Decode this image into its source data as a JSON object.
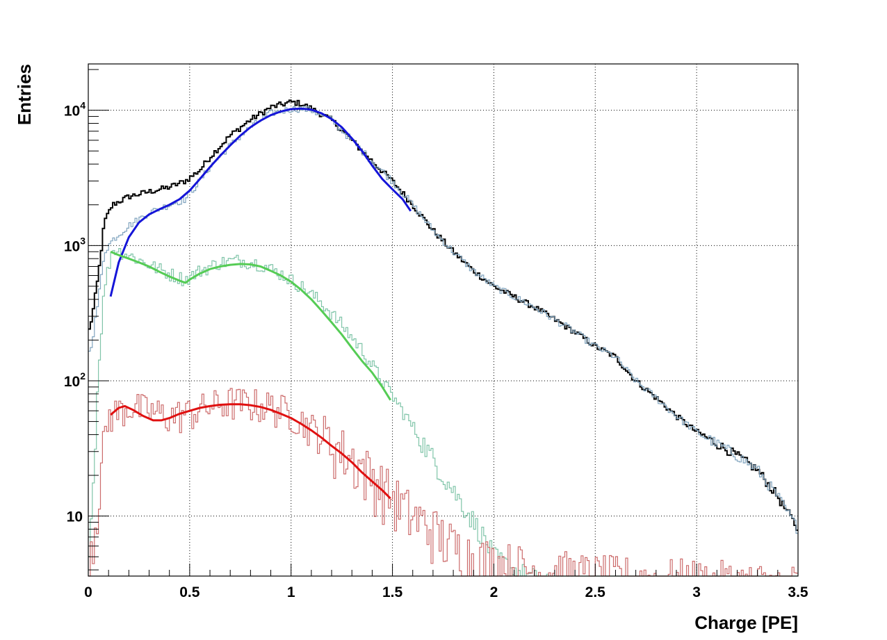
{
  "chart_data": {
    "type": "line",
    "title": "",
    "xlabel": "Charge [PE]",
    "ylabel": "Entries",
    "xlim": [
      0,
      3.5
    ],
    "ylim": [
      3.6,
      22000
    ],
    "y_scale": "log",
    "grid": true,
    "x_ticks": [
      "0",
      "0.5",
      "1",
      "1.5",
      "2",
      "2.5",
      "3",
      "3.5"
    ],
    "y_ticks": [
      {
        "value": 10,
        "label": "10",
        "exp": ""
      },
      {
        "value": 100,
        "label": "10",
        "exp": "2"
      },
      {
        "value": 1000,
        "label": "10",
        "exp": "3"
      },
      {
        "value": 10000,
        "label": "10",
        "exp": "4"
      }
    ],
    "histograms": [
      {
        "color": "#000000",
        "jitter": 0.05,
        "points": [
          [
            0,
            220
          ],
          [
            0.02,
            300
          ],
          [
            0.05,
            600
          ],
          [
            0.08,
            1500
          ],
          [
            0.12,
            2000
          ],
          [
            0.2,
            2300
          ],
          [
            0.3,
            2500
          ],
          [
            0.4,
            2700
          ],
          [
            0.48,
            3000
          ],
          [
            0.55,
            3600
          ],
          [
            0.6,
            4500
          ],
          [
            0.7,
            6500
          ],
          [
            0.8,
            8500
          ],
          [
            0.9,
            10500
          ],
          [
            1.0,
            11500
          ],
          [
            1.05,
            11200
          ],
          [
            1.1,
            10300
          ],
          [
            1.2,
            8500
          ],
          [
            1.3,
            6000
          ],
          [
            1.4,
            4200
          ],
          [
            1.5,
            3000
          ],
          [
            1.6,
            2000
          ],
          [
            1.7,
            1300
          ],
          [
            1.8,
            900
          ],
          [
            1.9,
            650
          ],
          [
            2.0,
            500
          ],
          [
            2.2,
            350
          ],
          [
            2.4,
            230
          ],
          [
            2.5,
            180
          ],
          [
            2.6,
            150
          ],
          [
            2.7,
            100
          ],
          [
            2.8,
            75
          ],
          [
            2.9,
            55
          ],
          [
            3.0,
            42
          ],
          [
            3.2,
            28
          ],
          [
            3.3,
            22
          ],
          [
            3.4,
            14
          ],
          [
            3.5,
            8
          ]
        ]
      },
      {
        "color": "#7fa3be",
        "jitter": 0.06,
        "points": [
          [
            0,
            150
          ],
          [
            0.02,
            200
          ],
          [
            0.05,
            400
          ],
          [
            0.08,
            900
          ],
          [
            0.12,
            1100
          ],
          [
            0.2,
            1400
          ],
          [
            0.3,
            1750
          ],
          [
            0.4,
            2000
          ],
          [
            0.48,
            2200
          ],
          [
            0.55,
            3000
          ],
          [
            0.6,
            3800
          ],
          [
            0.7,
            5500
          ],
          [
            0.8,
            7500
          ],
          [
            0.9,
            9500
          ],
          [
            1.0,
            10200
          ],
          [
            1.05,
            10300
          ],
          [
            1.1,
            10000
          ],
          [
            1.2,
            8500
          ],
          [
            1.3,
            6000
          ],
          [
            1.4,
            4200
          ],
          [
            1.5,
            3000
          ],
          [
            1.6,
            2000
          ],
          [
            1.7,
            1300
          ],
          [
            1.8,
            900
          ],
          [
            1.9,
            650
          ],
          [
            2.0,
            500
          ],
          [
            2.2,
            350
          ],
          [
            2.4,
            230
          ],
          [
            2.5,
            180
          ],
          [
            2.6,
            150
          ],
          [
            2.7,
            100
          ],
          [
            2.8,
            75
          ],
          [
            2.9,
            55
          ],
          [
            3.0,
            42
          ],
          [
            3.2,
            28
          ],
          [
            3.3,
            22
          ],
          [
            3.4,
            14
          ],
          [
            3.5,
            8
          ]
        ]
      },
      {
        "color": "#7fc4a8",
        "jitter": 0.12,
        "points": [
          [
            0,
            5
          ],
          [
            0.02,
            12
          ],
          [
            0.05,
            120
          ],
          [
            0.08,
            500
          ],
          [
            0.12,
            950
          ],
          [
            0.2,
            850
          ],
          [
            0.3,
            720
          ],
          [
            0.4,
            620
          ],
          [
            0.48,
            560
          ],
          [
            0.55,
            650
          ],
          [
            0.65,
            750
          ],
          [
            0.75,
            780
          ],
          [
            0.85,
            730
          ],
          [
            0.95,
            620
          ],
          [
            1.05,
            500
          ],
          [
            1.15,
            380
          ],
          [
            1.25,
            260
          ],
          [
            1.35,
            170
          ],
          [
            1.45,
            100
          ],
          [
            1.55,
            60
          ],
          [
            1.65,
            35
          ],
          [
            1.75,
            20
          ],
          [
            1.85,
            12
          ],
          [
            1.95,
            7
          ],
          [
            2.0,
            5
          ],
          [
            2.1,
            4
          ],
          [
            2.3,
            3
          ],
          [
            3.5,
            3
          ]
        ]
      },
      {
        "color": "#cc6b6b",
        "jitter": 0.3,
        "points": [
          [
            0,
            5
          ],
          [
            0.03,
            8
          ],
          [
            0.06,
            20
          ],
          [
            0.1,
            55
          ],
          [
            0.2,
            65
          ],
          [
            0.3,
            60
          ],
          [
            0.4,
            55
          ],
          [
            0.5,
            58
          ],
          [
            0.6,
            65
          ],
          [
            0.7,
            70
          ],
          [
            0.8,
            68
          ],
          [
            0.9,
            65
          ],
          [
            1.0,
            58
          ],
          [
            1.1,
            45
          ],
          [
            1.2,
            35
          ],
          [
            1.3,
            27
          ],
          [
            1.4,
            20
          ],
          [
            1.5,
            14
          ],
          [
            1.6,
            10
          ],
          [
            1.7,
            8
          ],
          [
            1.8,
            6
          ],
          [
            1.9,
            5
          ],
          [
            2.0,
            4.5
          ],
          [
            2.2,
            4
          ],
          [
            2.5,
            3.5
          ],
          [
            3.5,
            3
          ]
        ]
      }
    ],
    "fits": [
      {
        "color": "#1515d8",
        "points": [
          [
            0.11,
            420
          ],
          [
            0.15,
            750
          ],
          [
            0.2,
            1150
          ],
          [
            0.25,
            1480
          ],
          [
            0.3,
            1700
          ],
          [
            0.35,
            1850
          ],
          [
            0.4,
            2000
          ],
          [
            0.45,
            2200
          ],
          [
            0.5,
            2550
          ],
          [
            0.55,
            3100
          ],
          [
            0.6,
            3800
          ],
          [
            0.65,
            4600
          ],
          [
            0.7,
            5500
          ],
          [
            0.75,
            6500
          ],
          [
            0.8,
            7500
          ],
          [
            0.85,
            8400
          ],
          [
            0.9,
            9200
          ],
          [
            0.95,
            9800
          ],
          [
            1.0,
            10200
          ],
          [
            1.05,
            10300
          ],
          [
            1.1,
            10100
          ],
          [
            1.15,
            9500
          ],
          [
            1.2,
            8600
          ],
          [
            1.25,
            7500
          ],
          [
            1.3,
            6200
          ],
          [
            1.35,
            5000
          ],
          [
            1.4,
            3900
          ],
          [
            1.45,
            3100
          ],
          [
            1.5,
            2600
          ],
          [
            1.55,
            2200
          ],
          [
            1.59,
            1800
          ]
        ]
      },
      {
        "color": "#55cc55",
        "points": [
          [
            0.11,
            900
          ],
          [
            0.15,
            850
          ],
          [
            0.2,
            800
          ],
          [
            0.25,
            750
          ],
          [
            0.3,
            700
          ],
          [
            0.35,
            640
          ],
          [
            0.4,
            590
          ],
          [
            0.45,
            550
          ],
          [
            0.48,
            530
          ],
          [
            0.5,
            560
          ],
          [
            0.55,
            620
          ],
          [
            0.6,
            670
          ],
          [
            0.65,
            700
          ],
          [
            0.7,
            720
          ],
          [
            0.75,
            730
          ],
          [
            0.8,
            725
          ],
          [
            0.85,
            700
          ],
          [
            0.9,
            650
          ],
          [
            0.95,
            600
          ],
          [
            1.0,
            540
          ],
          [
            1.05,
            470
          ],
          [
            1.1,
            400
          ],
          [
            1.15,
            330
          ],
          [
            1.2,
            270
          ],
          [
            1.25,
            220
          ],
          [
            1.3,
            175
          ],
          [
            1.35,
            140
          ],
          [
            1.4,
            115
          ],
          [
            1.45,
            90
          ],
          [
            1.49,
            72
          ]
        ]
      },
      {
        "color": "#e01010",
        "points": [
          [
            0.11,
            56
          ],
          [
            0.15,
            63
          ],
          [
            0.18,
            65
          ],
          [
            0.22,
            61
          ],
          [
            0.27,
            55
          ],
          [
            0.32,
            51
          ],
          [
            0.36,
            51
          ],
          [
            0.4,
            53
          ],
          [
            0.45,
            57
          ],
          [
            0.5,
            60
          ],
          [
            0.55,
            63
          ],
          [
            0.6,
            65
          ],
          [
            0.65,
            66.5
          ],
          [
            0.7,
            67
          ],
          [
            0.75,
            67
          ],
          [
            0.8,
            66
          ],
          [
            0.85,
            64
          ],
          [
            0.9,
            61
          ],
          [
            0.95,
            57
          ],
          [
            1.0,
            53
          ],
          [
            1.05,
            48
          ],
          [
            1.1,
            43
          ],
          [
            1.15,
            38
          ],
          [
            1.2,
            33
          ],
          [
            1.25,
            29
          ],
          [
            1.3,
            25
          ],
          [
            1.35,
            21
          ],
          [
            1.4,
            18
          ],
          [
            1.45,
            15.5
          ],
          [
            1.49,
            13.5
          ]
        ]
      }
    ]
  }
}
